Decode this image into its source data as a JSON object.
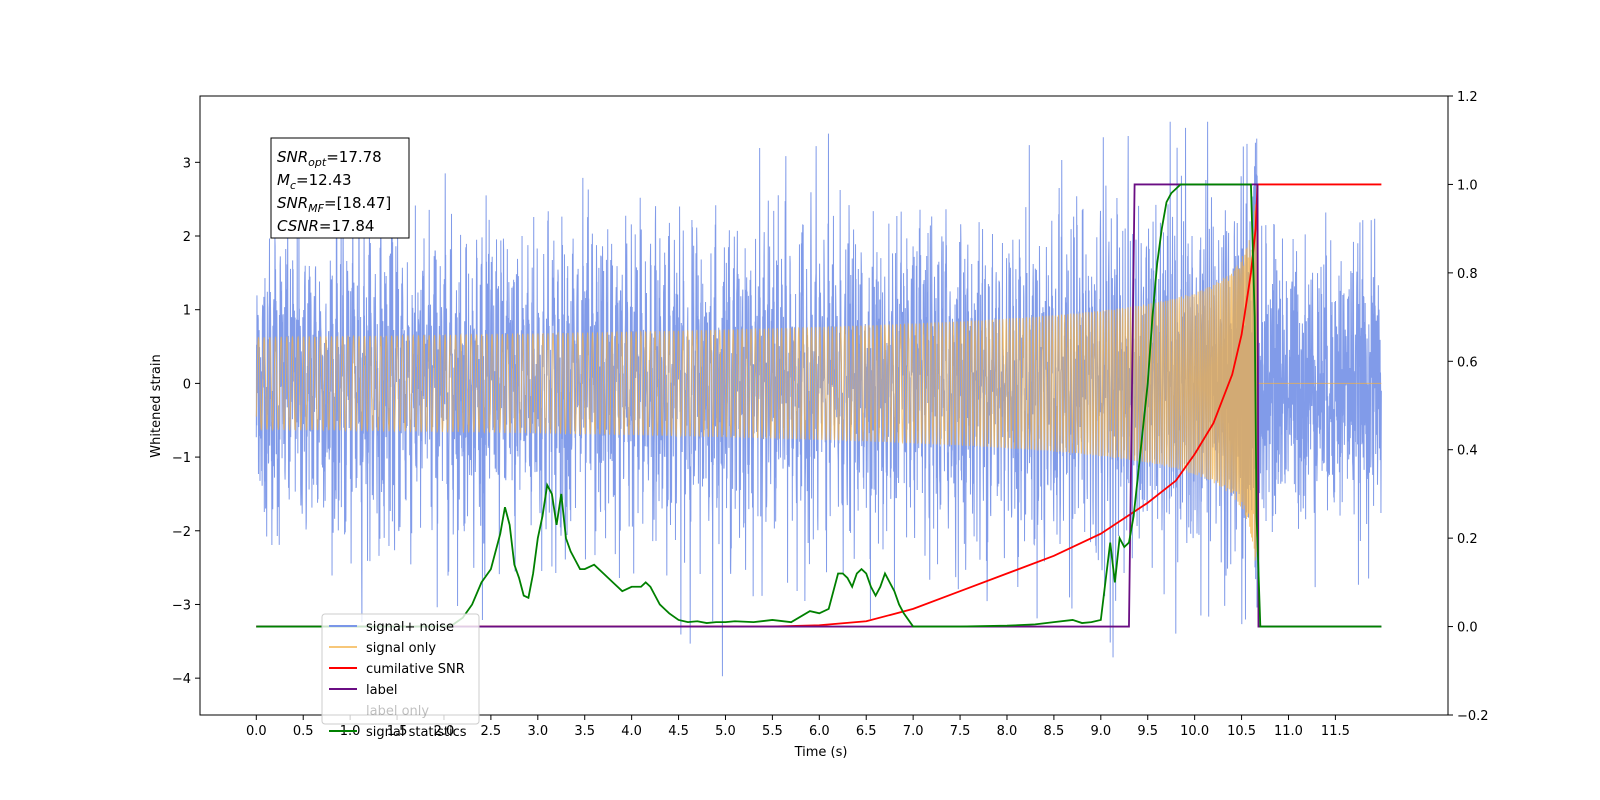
{
  "chart_data": {
    "type": "line",
    "title": "",
    "xlabel": "Time (s)",
    "ylabel": "Whitened strain",
    "xlim": [
      -0.6,
      12.7
    ],
    "ylim": [
      -4.5,
      3.9
    ],
    "y2lim": [
      -0.2,
      1.2
    ],
    "x_ticks": [
      0.0,
      0.5,
      1.0,
      1.5,
      2.0,
      2.5,
      3.0,
      3.5,
      4.0,
      4.5,
      5.0,
      5.5,
      6.0,
      6.5,
      7.0,
      7.5,
      8.0,
      8.5,
      9.0,
      9.5,
      10.0,
      10.5,
      11.0,
      11.5
    ],
    "x_tick_labels": [
      "0.0",
      "0.5",
      "1.0",
      "1.5",
      "2.0",
      "2.5",
      "3.0",
      "3.5",
      "4.0",
      "4.5",
      "5.0",
      "5.5",
      "6.0",
      "6.5",
      "7.0",
      "7.5",
      "8.0",
      "8.5",
      "9.0",
      "9.5",
      "10.0",
      "10.5",
      "11.0",
      "11.5"
    ],
    "y_ticks": [
      -4,
      -3,
      -2,
      -1,
      0,
      1,
      2,
      3
    ],
    "y_tick_labels": [
      "−4",
      "−3",
      "−2",
      "−1",
      "0",
      "1",
      "2",
      "3"
    ],
    "y2_ticks": [
      -0.2,
      0.0,
      0.2,
      0.4,
      0.6,
      0.8,
      1.0,
      1.2
    ],
    "y2_tick_labels": [
      "−0.2",
      "0.0",
      "0.2",
      "0.4",
      "0.6",
      "0.8",
      "1.0",
      "1.2"
    ],
    "grid": false,
    "legend_placement": "lower-left",
    "annotation": [
      {
        "var": "SNR",
        "sub": "opt",
        "value": "=17.78"
      },
      {
        "var": "M",
        "sub": "c",
        "value": "=12.43"
      },
      {
        "var": "SNR",
        "sub": "MF",
        "value": "=[18.47]"
      },
      {
        "var": "CSNR",
        "sub": "",
        "value": "=17.84"
      }
    ],
    "series": [
      {
        "name": "signal+ noise",
        "color": "#7a96e8",
        "axis": "left",
        "description_values": {
          "x_range": [
            0.0,
            11.99
          ],
          "amplitude_typical": 1.3,
          "y_max": 3.55,
          "y_min": -4.12
        }
      },
      {
        "name": "signal only",
        "color": "#f5b041",
        "axis": "left",
        "chirp": {
          "t_start": 0.0,
          "t_merge": 10.67,
          "t_end": 11.99,
          "peak_amplitude": 3.0
        }
      },
      {
        "name": "cumilative SNR",
        "color": "#ff0000",
        "axis": "right",
        "x": [
          0.0,
          5.5,
          6.0,
          6.5,
          7.0,
          7.5,
          8.0,
          8.5,
          9.0,
          9.5,
          9.8,
          10.0,
          10.2,
          10.4,
          10.5,
          10.6,
          10.65,
          10.66,
          10.67,
          11.0,
          11.5,
          11.99
        ],
        "y": [
          0.0,
          0.0,
          0.003,
          0.012,
          0.04,
          0.08,
          0.12,
          0.16,
          0.21,
          0.28,
          0.33,
          0.39,
          0.46,
          0.57,
          0.66,
          0.8,
          0.9,
          0.95,
          1.0,
          1.0,
          1.0,
          1.0
        ]
      },
      {
        "name": "label",
        "color": "#6a0d83",
        "axis": "right",
        "x": [
          0.0,
          9.3,
          9.36,
          10.67,
          10.68,
          11.99
        ],
        "y": [
          0.0,
          0.0,
          1.0,
          1.0,
          0.0,
          0.0
        ]
      },
      {
        "name": "label only",
        "color": "#6a0d83",
        "axis": "right",
        "hidden_in_plot": true
      },
      {
        "name": "signal statistics",
        "color": "#008000",
        "axis": "right",
        "x": [
          0.0,
          2.0,
          2.1,
          2.2,
          2.3,
          2.4,
          2.5,
          2.6,
          2.65,
          2.7,
          2.75,
          2.8,
          2.85,
          2.9,
          2.95,
          3.0,
          3.05,
          3.1,
          3.15,
          3.2,
          3.25,
          3.3,
          3.35,
          3.4,
          3.45,
          3.5,
          3.6,
          3.7,
          3.8,
          3.9,
          4.0,
          4.1,
          4.15,
          4.2,
          4.25,
          4.3,
          4.35,
          4.4,
          4.5,
          4.6,
          4.7,
          4.8,
          4.9,
          5.0,
          5.1,
          5.3,
          5.5,
          5.7,
          5.9,
          6.0,
          6.1,
          6.2,
          6.25,
          6.3,
          6.35,
          6.4,
          6.45,
          6.5,
          6.55,
          6.6,
          6.65,
          6.7,
          6.75,
          6.8,
          6.85,
          6.9,
          7.0,
          7.1,
          7.2,
          7.5,
          8.0,
          8.3,
          8.5,
          8.7,
          8.8,
          8.9,
          9.0,
          9.1,
          9.15,
          9.2,
          9.25,
          9.3,
          9.35,
          9.4,
          9.45,
          9.5,
          9.55,
          9.6,
          9.65,
          9.7,
          9.75,
          9.8,
          9.85,
          9.9,
          9.95,
          10.0,
          10.3,
          10.6,
          10.64,
          10.66,
          10.7,
          11.0,
          11.5,
          11.99
        ],
        "y": [
          0.0,
          0.0,
          0.005,
          0.02,
          0.05,
          0.1,
          0.13,
          0.21,
          0.27,
          0.23,
          0.14,
          0.11,
          0.07,
          0.065,
          0.12,
          0.2,
          0.25,
          0.32,
          0.3,
          0.23,
          0.3,
          0.2,
          0.17,
          0.15,
          0.13,
          0.13,
          0.14,
          0.12,
          0.1,
          0.08,
          0.09,
          0.09,
          0.1,
          0.09,
          0.07,
          0.05,
          0.04,
          0.03,
          0.015,
          0.01,
          0.012,
          0.008,
          0.01,
          0.01,
          0.012,
          0.01,
          0.015,
          0.01,
          0.035,
          0.03,
          0.04,
          0.12,
          0.12,
          0.11,
          0.09,
          0.12,
          0.13,
          0.12,
          0.09,
          0.07,
          0.09,
          0.12,
          0.1,
          0.08,
          0.05,
          0.03,
          0.0,
          0.0,
          0.0,
          0.0,
          0.002,
          0.005,
          0.01,
          0.015,
          0.008,
          0.01,
          0.015,
          0.19,
          0.1,
          0.2,
          0.18,
          0.19,
          0.25,
          0.35,
          0.45,
          0.55,
          0.7,
          0.82,
          0.9,
          0.96,
          0.98,
          0.99,
          1.0,
          1.0,
          1.0,
          1.0,
          1.0,
          1.0,
          0.7,
          0.25,
          0.0,
          0.0,
          0.0,
          0.0
        ]
      }
    ]
  }
}
